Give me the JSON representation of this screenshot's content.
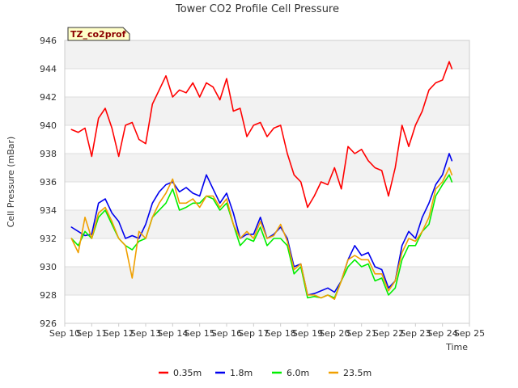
{
  "chart_data": {
    "type": "line",
    "title": "Tower CO2 Profile Cell Pressure",
    "xlabel": "Time",
    "ylabel": "Cell Pressure (mBar)",
    "badge": "TZ_co2prof",
    "ylim": [
      926,
      946
    ],
    "xlim": [
      0,
      15
    ],
    "y_ticks": [
      926,
      928,
      930,
      932,
      934,
      936,
      938,
      940,
      942,
      944,
      946
    ],
    "x_ticks": [
      {
        "value": 0,
        "label": "Sep 10"
      },
      {
        "value": 1,
        "label": "Sep 11"
      },
      {
        "value": 2,
        "label": "Sep 12"
      },
      {
        "value": 3,
        "label": "Sep 13"
      },
      {
        "value": 4,
        "label": "Sep 14"
      },
      {
        "value": 5,
        "label": "Sep 15"
      },
      {
        "value": 6,
        "label": "Sep 16"
      },
      {
        "value": 7,
        "label": "Sep 17"
      },
      {
        "value": 8,
        "label": "Sep 18"
      },
      {
        "value": 9,
        "label": "Sep 19"
      },
      {
        "value": 10,
        "label": "Sep 20"
      },
      {
        "value": 11,
        "label": "Sep 21"
      },
      {
        "value": 12,
        "label": "Sep 22"
      },
      {
        "value": 13,
        "label": "Sep 23"
      },
      {
        "value": 14,
        "label": "Sep 24"
      },
      {
        "value": 15,
        "label": "Sep 25"
      }
    ],
    "grid": "horizontal bands",
    "legend_position": "bottom",
    "x": [
      0.25,
      0.5,
      0.75,
      1.0,
      1.25,
      1.5,
      1.75,
      2.0,
      2.25,
      2.5,
      2.75,
      3.0,
      3.25,
      3.5,
      3.75,
      4.0,
      4.25,
      4.5,
      4.75,
      5.0,
      5.25,
      5.5,
      5.75,
      6.0,
      6.25,
      6.5,
      6.75,
      7.0,
      7.25,
      7.5,
      7.75,
      8.0,
      8.25,
      8.5,
      8.75,
      9.0,
      9.25,
      9.5,
      9.75,
      10.0,
      10.25,
      10.5,
      10.75,
      11.0,
      11.25,
      11.5,
      11.75,
      12.0,
      12.25,
      12.5,
      12.75,
      13.0,
      13.25,
      13.5,
      13.75,
      14.0,
      14.25,
      14.35
    ],
    "series": [
      {
        "name": "0.35m",
        "color": "#ff0000",
        "values": [
          939.7,
          939.5,
          939.8,
          937.8,
          940.5,
          941.2,
          939.8,
          937.8,
          940.0,
          940.2,
          939.0,
          938.7,
          941.5,
          942.5,
          943.5,
          942.0,
          942.5,
          942.3,
          943.0,
          942.0,
          943.0,
          942.7,
          941.8,
          943.3,
          941.0,
          941.2,
          939.2,
          940.0,
          940.2,
          939.2,
          939.8,
          940.0,
          938.0,
          936.5,
          936.0,
          934.2,
          935.0,
          936.0,
          935.8,
          937.0,
          935.5,
          938.5,
          938.0,
          938.3,
          937.5,
          937.0,
          936.8,
          935.0,
          937.0,
          940.0,
          938.5,
          940.0,
          941.0,
          942.5,
          943.0,
          943.2,
          944.5,
          944.0
        ]
      },
      {
        "name": "1.8m",
        "color": "#0000ee",
        "values": [
          932.8,
          932.5,
          932.2,
          932.3,
          934.5,
          934.8,
          933.8,
          933.2,
          932.0,
          932.2,
          932.0,
          933.0,
          934.5,
          935.3,
          935.8,
          936.0,
          935.3,
          935.6,
          935.2,
          935.0,
          936.5,
          935.5,
          934.5,
          935.2,
          933.8,
          932.0,
          932.3,
          932.3,
          933.5,
          932.0,
          932.3,
          932.8,
          932.0,
          930.0,
          930.2,
          928.0,
          928.1,
          928.3,
          928.5,
          928.2,
          929.0,
          930.5,
          931.5,
          930.8,
          931.0,
          930.0,
          929.8,
          928.5,
          929.0,
          931.5,
          932.5,
          932.0,
          933.5,
          934.5,
          935.8,
          936.5,
          938.0,
          937.5
        ]
      },
      {
        "name": "6.0m",
        "color": "#00ee00",
        "values": [
          932.0,
          931.5,
          932.5,
          932.0,
          933.5,
          934.0,
          933.0,
          932.0,
          931.5,
          931.2,
          931.8,
          932.0,
          933.5,
          934.0,
          934.5,
          935.5,
          934.0,
          934.2,
          934.5,
          934.5,
          935.0,
          934.8,
          934.0,
          934.5,
          933.0,
          931.5,
          932.0,
          931.8,
          932.8,
          931.5,
          932.0,
          932.0,
          931.5,
          929.5,
          930.0,
          927.8,
          927.9,
          927.8,
          928.0,
          927.8,
          929.0,
          930.0,
          930.5,
          930.0,
          930.2,
          929.0,
          929.2,
          928.0,
          928.5,
          930.5,
          931.5,
          931.5,
          932.5,
          933.0,
          935.0,
          935.8,
          936.5,
          936.0
        ]
      },
      {
        "name": "23.5m",
        "color": "#f0a000",
        "values": [
          932.0,
          931.0,
          933.5,
          932.0,
          933.8,
          934.2,
          933.2,
          932.0,
          931.5,
          929.2,
          932.5,
          932.0,
          933.5,
          934.5,
          935.2,
          936.2,
          934.5,
          934.5,
          934.8,
          934.2,
          935.0,
          935.0,
          934.2,
          934.8,
          933.0,
          932.0,
          932.5,
          932.0,
          933.2,
          932.0,
          932.2,
          933.0,
          931.8,
          929.8,
          930.2,
          928.0,
          928.0,
          927.8,
          928.0,
          927.7,
          929.0,
          930.5,
          930.8,
          930.5,
          930.5,
          929.5,
          929.5,
          928.3,
          929.0,
          931.0,
          932.0,
          931.8,
          932.5,
          933.5,
          935.5,
          936.0,
          937.0,
          936.5
        ]
      }
    ]
  }
}
